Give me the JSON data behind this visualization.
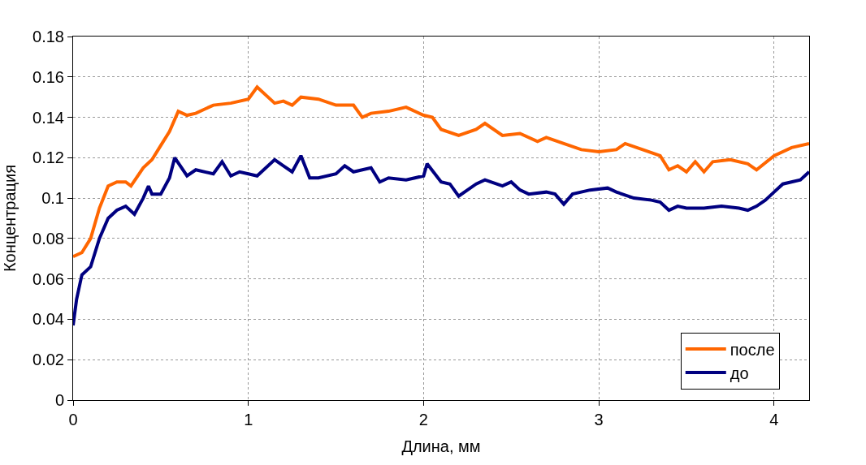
{
  "chart_data": {
    "type": "line",
    "xlabel": "Длина, мм",
    "ylabel": "Концентрация",
    "xlim": [
      0,
      4.2
    ],
    "xticks": [
      0,
      1,
      2,
      3,
      4
    ],
    "ylim": [
      0,
      0.18
    ],
    "yticks": [
      {
        "value": 0,
        "label": "0"
      },
      {
        "value": 0.02,
        "label": "0.02"
      },
      {
        "value": 0.04,
        "label": "0.04"
      },
      {
        "value": 0.06,
        "label": "0.06"
      },
      {
        "value": 0.08,
        "label": "0.08"
      },
      {
        "value": 0.1,
        "label": "0.1"
      },
      {
        "value": 0.12,
        "label": "0.12"
      },
      {
        "value": 0.14,
        "label": "0.14"
      },
      {
        "value": 0.16,
        "label": "0.16"
      },
      {
        "value": 0.18,
        "label": "0.18"
      }
    ],
    "grid": true,
    "legend": "bottom right",
    "marker": "none",
    "line_style": "solid",
    "series": [
      {
        "name": "после",
        "color": "#ff6600",
        "x": [
          0,
          0.05,
          0.1,
          0.15,
          0.2,
          0.25,
          0.3,
          0.33,
          0.4,
          0.45,
          0.5,
          0.55,
          0.6,
          0.65,
          0.7,
          0.8,
          0.9,
          1.0,
          1.05,
          1.15,
          1.2,
          1.25,
          1.3,
          1.4,
          1.5,
          1.6,
          1.65,
          1.7,
          1.8,
          1.9,
          2.0,
          2.05,
          2.1,
          2.2,
          2.3,
          2.35,
          2.45,
          2.55,
          2.65,
          2.7,
          2.8,
          2.9,
          3.0,
          3.1,
          3.15,
          3.25,
          3.35,
          3.4,
          3.45,
          3.5,
          3.55,
          3.6,
          3.65,
          3.75,
          3.85,
          3.9,
          4.0,
          4.1,
          4.2
        ],
        "values": [
          0.071,
          0.073,
          0.08,
          0.095,
          0.106,
          0.108,
          0.108,
          0.106,
          0.115,
          0.119,
          0.126,
          0.133,
          0.143,
          0.141,
          0.142,
          0.146,
          0.147,
          0.149,
          0.155,
          0.147,
          0.148,
          0.146,
          0.15,
          0.149,
          0.146,
          0.146,
          0.14,
          0.142,
          0.143,
          0.145,
          0.141,
          0.14,
          0.134,
          0.131,
          0.134,
          0.137,
          0.131,
          0.132,
          0.128,
          0.13,
          0.127,
          0.124,
          0.123,
          0.124,
          0.127,
          0.124,
          0.121,
          0.114,
          0.116,
          0.113,
          0.118,
          0.113,
          0.118,
          0.119,
          0.117,
          0.114,
          0.121,
          0.125,
          0.127
        ]
      },
      {
        "name": "до",
        "color": "#000080",
        "x": [
          0,
          0.02,
          0.05,
          0.1,
          0.15,
          0.2,
          0.25,
          0.3,
          0.35,
          0.4,
          0.43,
          0.45,
          0.5,
          0.55,
          0.58,
          0.65,
          0.7,
          0.8,
          0.85,
          0.9,
          0.95,
          1.0,
          1.05,
          1.1,
          1.15,
          1.2,
          1.25,
          1.3,
          1.35,
          1.4,
          1.5,
          1.55,
          1.6,
          1.7,
          1.75,
          1.8,
          1.9,
          2.0,
          2.02,
          2.1,
          2.15,
          2.2,
          2.3,
          2.35,
          2.45,
          2.5,
          2.55,
          2.6,
          2.7,
          2.75,
          2.8,
          2.85,
          2.95,
          3.05,
          3.1,
          3.2,
          3.3,
          3.35,
          3.4,
          3.45,
          3.5,
          3.6,
          3.7,
          3.8,
          3.85,
          3.9,
          3.95,
          4.0,
          4.05,
          4.15,
          4.2
        ],
        "values": [
          0.037,
          0.05,
          0.062,
          0.066,
          0.08,
          0.09,
          0.094,
          0.096,
          0.092,
          0.1,
          0.106,
          0.102,
          0.102,
          0.11,
          0.12,
          0.111,
          0.114,
          0.112,
          0.118,
          0.111,
          0.113,
          0.112,
          0.111,
          0.115,
          0.119,
          0.116,
          0.113,
          0.121,
          0.11,
          0.11,
          0.112,
          0.116,
          0.113,
          0.115,
          0.108,
          0.11,
          0.109,
          0.111,
          0.117,
          0.108,
          0.107,
          0.101,
          0.107,
          0.109,
          0.106,
          0.108,
          0.104,
          0.102,
          0.103,
          0.102,
          0.097,
          0.102,
          0.104,
          0.105,
          0.103,
          0.1,
          0.099,
          0.098,
          0.094,
          0.096,
          0.095,
          0.095,
          0.096,
          0.095,
          0.094,
          0.096,
          0.099,
          0.103,
          0.107,
          0.109,
          0.113
        ]
      }
    ]
  }
}
